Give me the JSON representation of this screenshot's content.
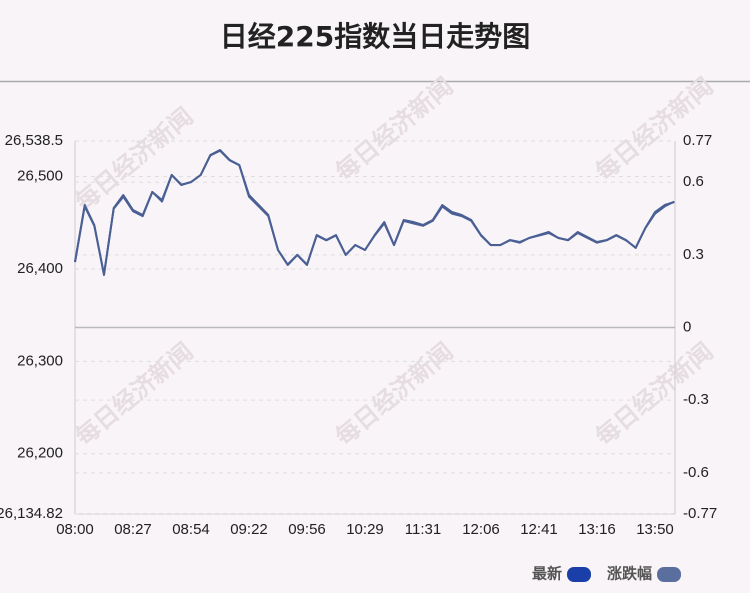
{
  "chart_data": {
    "type": "line",
    "title": "日经225指数当日走势图",
    "watermark": "每日经济新闻",
    "categories": [
      "08:00",
      null,
      null,
      null,
      null,
      null,
      "08:27",
      null,
      null,
      null,
      null,
      null,
      "08:54",
      null,
      null,
      null,
      null,
      null,
      "09:22",
      null,
      null,
      null,
      null,
      null,
      "09:56",
      null,
      null,
      null,
      null,
      null,
      "10:29",
      null,
      null,
      null,
      null,
      null,
      "11:31",
      null,
      null,
      null,
      null,
      null,
      "12:06",
      null,
      null,
      null,
      null,
      null,
      "12:41",
      null,
      null,
      null,
      null,
      null,
      "13:16",
      null,
      null,
      null,
      null,
      null,
      "13:50",
      null,
      null
    ],
    "series": [
      {
        "name": "最新",
        "color": "#1a3fa8",
        "line_color": "#4a5f94",
        "values": [
          26407.5,
          26469.2,
          26447.6,
          26393.5,
          26466.0,
          26480.1,
          26463.8,
          26458.4,
          26483.3,
          26474.6,
          26501.7,
          26490.9,
          26494.1,
          26501.7,
          26523.4,
          26528.8,
          26517.9,
          26512.5,
          26480.1,
          26469.2,
          26458.4,
          26420.5,
          26404.3,
          26415.1,
          26404.3,
          26436.8,
          26431.4,
          26436.8,
          26415.1,
          26425.9,
          26420.5,
          26436.8,
          26450.8,
          26425.9,
          26453.0,
          26450.8,
          26447.6,
          26453.0,
          26469.2,
          26461.7,
          26458.4,
          26453.0,
          26436.8,
          26425.9,
          26425.9,
          26431.4,
          26429.2,
          26433.5,
          26436.8,
          26440.0,
          26433.5,
          26431.4,
          26440.0,
          26434.6,
          26429.2,
          26431.4,
          26436.8,
          26431.4,
          26422.7,
          26444.3,
          26461.7,
          26469.2,
          26472.5
        ]
      },
      {
        "name": "涨跌幅",
        "color": "#5a6f9e",
        "line_color": "#4a5f94",
        "axis": "y2",
        "values": [
          0.27,
          0.5,
          0.42,
          0.22,
          0.49,
          0.54,
          0.48,
          0.46,
          0.56,
          0.52,
          0.63,
          0.59,
          0.6,
          0.63,
          0.71,
          0.73,
          0.69,
          0.67,
          0.54,
          0.5,
          0.46,
          0.32,
          0.26,
          0.3,
          0.26,
          0.38,
          0.36,
          0.38,
          0.3,
          0.34,
          0.32,
          0.38,
          0.43,
          0.34,
          0.44,
          0.43,
          0.42,
          0.44,
          0.5,
          0.47,
          0.46,
          0.44,
          0.38,
          0.34,
          0.34,
          0.36,
          0.35,
          0.37,
          0.38,
          0.39,
          0.37,
          0.36,
          0.39,
          0.37,
          0.35,
          0.36,
          0.38,
          0.36,
          0.33,
          0.41,
          0.47,
          0.5,
          0.52
        ]
      }
    ],
    "ylim": [
      26134.82,
      26538.5
    ],
    "yticks": [
      {
        "value": 26134.82,
        "label": "26,134.82"
      },
      {
        "value": 26200,
        "label": "26,200"
      },
      {
        "value": 26300,
        "label": "26,300"
      },
      {
        "value": 26400,
        "label": "26,400"
      },
      {
        "value": 26500,
        "label": "26,500"
      },
      {
        "value": 26538.5,
        "label": "26,538.5"
      }
    ],
    "y2lim": [
      -0.77,
      0.77
    ],
    "y2ticks": [
      -0.77,
      -0.6,
      -0.3,
      0,
      0.3,
      0.6,
      0.77
    ],
    "grid": true,
    "legend": "bottom-right"
  }
}
